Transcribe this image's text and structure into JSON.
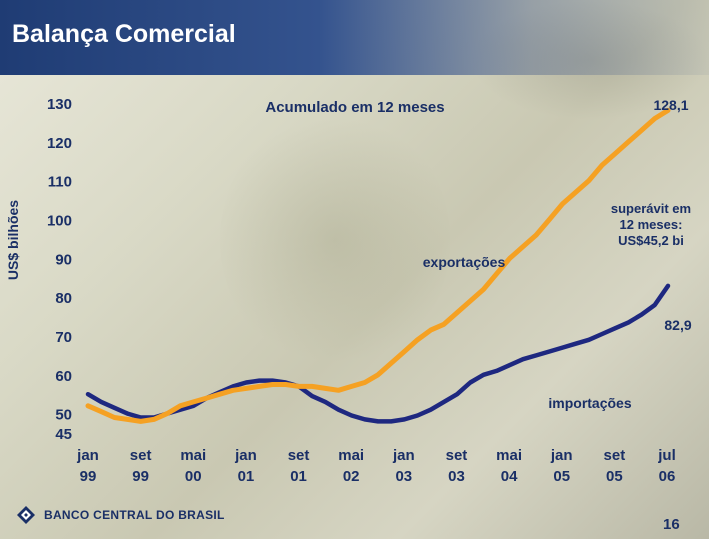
{
  "header": {
    "title": "Balança Comercial"
  },
  "footer": {
    "logo_text": "BANCO CENTRAL DO BRASIL",
    "page_number": "16"
  },
  "colors": {
    "exports": "#f5a123",
    "imports": "#1e2880",
    "header": "#1f3c74",
    "text": "#1a2f66"
  },
  "chart_data": {
    "type": "line",
    "title": "Acumulado em 12 meses",
    "ylabel": "US$ bilhões",
    "ylim": [
      45,
      130
    ],
    "ytick_labels": [
      "45",
      "50",
      "60",
      "70",
      "80",
      "90",
      "100",
      "110",
      "120",
      "130"
    ],
    "xtick_labels": [
      [
        "jan",
        "99"
      ],
      [
        "set",
        "99"
      ],
      [
        "mai",
        "00"
      ],
      [
        "jan",
        "01"
      ],
      [
        "set",
        "01"
      ],
      [
        "mai",
        "02"
      ],
      [
        "jan",
        "03"
      ],
      [
        "set",
        "03"
      ],
      [
        "mai",
        "04"
      ],
      [
        "jan",
        "05"
      ],
      [
        "set",
        "05"
      ],
      [
        "jul",
        "06"
      ]
    ],
    "series": [
      {
        "name": "exportações",
        "values": [
          [
            0,
            52
          ],
          [
            2,
            50.5
          ],
          [
            4,
            49
          ],
          [
            6,
            48.5
          ],
          [
            8,
            48
          ],
          [
            10,
            48.5
          ],
          [
            12,
            50
          ],
          [
            14,
            52
          ],
          [
            16,
            53
          ],
          [
            18,
            54
          ],
          [
            20,
            55
          ],
          [
            22,
            56
          ],
          [
            24,
            56.5
          ],
          [
            26,
            57
          ],
          [
            28,
            57.5
          ],
          [
            30,
            57.5
          ],
          [
            32,
            57
          ],
          [
            34,
            57
          ],
          [
            36,
            56.5
          ],
          [
            38,
            56
          ],
          [
            40,
            57
          ],
          [
            42,
            58
          ],
          [
            44,
            60
          ],
          [
            46,
            63
          ],
          [
            48,
            66
          ],
          [
            50,
            69
          ],
          [
            52,
            71.5
          ],
          [
            54,
            73
          ],
          [
            56,
            76
          ],
          [
            58,
            79
          ],
          [
            60,
            82
          ],
          [
            62,
            86
          ],
          [
            64,
            90
          ],
          [
            66,
            93
          ],
          [
            68,
            96
          ],
          [
            70,
            100
          ],
          [
            72,
            104
          ],
          [
            74,
            107
          ],
          [
            76,
            110
          ],
          [
            78,
            114
          ],
          [
            80,
            117
          ],
          [
            82,
            120
          ],
          [
            84,
            123
          ],
          [
            86,
            126
          ],
          [
            88,
            128.1
          ]
        ],
        "end_label": "128,1"
      },
      {
        "name": "importações",
        "values": [
          [
            0,
            55
          ],
          [
            2,
            53
          ],
          [
            4,
            51.5
          ],
          [
            6,
            50
          ],
          [
            8,
            49
          ],
          [
            10,
            49
          ],
          [
            12,
            50
          ],
          [
            14,
            51
          ],
          [
            16,
            52
          ],
          [
            18,
            54
          ],
          [
            20,
            55.5
          ],
          [
            22,
            57
          ],
          [
            24,
            58
          ],
          [
            26,
            58.5
          ],
          [
            28,
            58.5
          ],
          [
            30,
            58
          ],
          [
            32,
            57
          ],
          [
            34,
            54.5
          ],
          [
            36,
            53
          ],
          [
            38,
            51
          ],
          [
            40,
            49.5
          ],
          [
            42,
            48.5
          ],
          [
            44,
            48
          ],
          [
            46,
            48
          ],
          [
            48,
            48.5
          ],
          [
            50,
            49.5
          ],
          [
            52,
            51
          ],
          [
            54,
            53
          ],
          [
            56,
            55
          ],
          [
            58,
            58
          ],
          [
            60,
            60
          ],
          [
            62,
            61
          ],
          [
            64,
            62.5
          ],
          [
            66,
            64
          ],
          [
            68,
            65
          ],
          [
            70,
            66
          ],
          [
            72,
            67
          ],
          [
            74,
            68
          ],
          [
            76,
            69
          ],
          [
            78,
            70.5
          ],
          [
            80,
            72
          ],
          [
            82,
            73.5
          ],
          [
            84,
            75.5
          ],
          [
            86,
            78
          ],
          [
            88,
            82.9
          ]
        ],
        "end_label": "82,9"
      }
    ],
    "annotations": [
      "superávit em",
      "12 meses:",
      "US$45,2 bi"
    ]
  }
}
